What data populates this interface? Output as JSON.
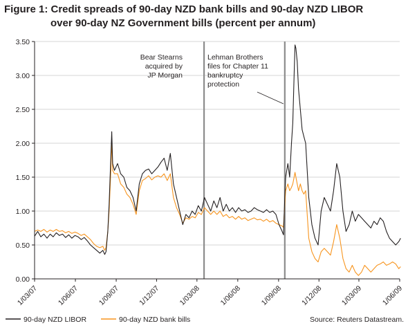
{
  "title": {
    "line1": "Figure 1: Credit spreads of 90-day NZD bank bills and 90-day NZD LIBOR",
    "line2": "over 90-day NZ Government bills (percent per annum)"
  },
  "source": "Source: Reuters Datastream.",
  "colors": {
    "libor": "#231f20",
    "bankbills": "#f7941d",
    "event_line": "#8c8c8c",
    "axis": "#231f20",
    "grid": "#c8c8c8"
  },
  "chart_data": {
    "type": "line",
    "xaxis": {
      "type": "date",
      "ticks": [
        "1/03/07",
        "1/06/07",
        "1/09/07",
        "1/12/07",
        "1/03/08",
        "1/06/08",
        "1/09/08",
        "1/12/08",
        "1/03/09",
        "1/06/09"
      ],
      "xlim": [
        "2007-03-01",
        "2009-06-01"
      ]
    },
    "ylim": [
      0,
      3.5
    ],
    "yticks": [
      "0.00",
      "0.50",
      "1.00",
      "1.50",
      "2.00",
      "2.50",
      "3.00",
      "3.50"
    ],
    "grid": "horizontal",
    "legend_placement": "bottom",
    "annotations": [
      {
        "lines": [
          "Bear Stearns",
          "acquired by",
          "JP Morgan"
        ],
        "date": "2008-03-17"
      },
      {
        "lines": [
          "Lehman Brothers",
          "files for Chapter 11",
          "bankruptcy",
          "protection"
        ],
        "date": "2008-09-15"
      }
    ],
    "series": [
      {
        "name": "90-day NZD LIBOR",
        "color": "#231f20",
        "points": [
          [
            "2007-03-01",
            0.63
          ],
          [
            "2007-03-08",
            0.7
          ],
          [
            "2007-03-15",
            0.62
          ],
          [
            "2007-03-22",
            0.66
          ],
          [
            "2007-03-29",
            0.6
          ],
          [
            "2007-04-05",
            0.66
          ],
          [
            "2007-04-12",
            0.62
          ],
          [
            "2007-04-19",
            0.68
          ],
          [
            "2007-04-26",
            0.64
          ],
          [
            "2007-05-03",
            0.66
          ],
          [
            "2007-05-10",
            0.61
          ],
          [
            "2007-05-17",
            0.65
          ],
          [
            "2007-05-24",
            0.6
          ],
          [
            "2007-05-31",
            0.64
          ],
          [
            "2007-06-07",
            0.62
          ],
          [
            "2007-06-14",
            0.58
          ],
          [
            "2007-06-21",
            0.61
          ],
          [
            "2007-06-28",
            0.56
          ],
          [
            "2007-07-05",
            0.5
          ],
          [
            "2007-07-12",
            0.46
          ],
          [
            "2007-07-19",
            0.42
          ],
          [
            "2007-07-26",
            0.38
          ],
          [
            "2007-08-02",
            0.42
          ],
          [
            "2007-08-06",
            0.36
          ],
          [
            "2007-08-09",
            0.4
          ],
          [
            "2007-08-13",
            0.7
          ],
          [
            "2007-08-16",
            1.1
          ],
          [
            "2007-08-20",
            1.8
          ],
          [
            "2007-08-22",
            2.17
          ],
          [
            "2007-08-24",
            1.7
          ],
          [
            "2007-08-28",
            1.6
          ],
          [
            "2007-09-04",
            1.7
          ],
          [
            "2007-09-11",
            1.55
          ],
          [
            "2007-09-18",
            1.5
          ],
          [
            "2007-09-25",
            1.35
          ],
          [
            "2007-10-02",
            1.3
          ],
          [
            "2007-10-09",
            1.2
          ],
          [
            "2007-10-16",
            1.0
          ],
          [
            "2007-10-23",
            1.4
          ],
          [
            "2007-10-30",
            1.55
          ],
          [
            "2007-11-06",
            1.6
          ],
          [
            "2007-11-13",
            1.62
          ],
          [
            "2007-11-20",
            1.55
          ],
          [
            "2007-11-27",
            1.6
          ],
          [
            "2007-12-04",
            1.65
          ],
          [
            "2007-12-11",
            1.72
          ],
          [
            "2007-12-18",
            1.78
          ],
          [
            "2007-12-25",
            1.6
          ],
          [
            "2008-01-01",
            1.85
          ],
          [
            "2008-01-08",
            1.4
          ],
          [
            "2008-01-15",
            1.2
          ],
          [
            "2008-01-22",
            1.0
          ],
          [
            "2008-01-29",
            0.8
          ],
          [
            "2008-02-05",
            0.95
          ],
          [
            "2008-02-12",
            0.9
          ],
          [
            "2008-02-19",
            1.0
          ],
          [
            "2008-02-26",
            0.95
          ],
          [
            "2008-03-04",
            1.08
          ],
          [
            "2008-03-11",
            1.0
          ],
          [
            "2008-03-18",
            1.2
          ],
          [
            "2008-03-25",
            1.1
          ],
          [
            "2008-04-01",
            1.0
          ],
          [
            "2008-04-08",
            1.15
          ],
          [
            "2008-04-15",
            1.05
          ],
          [
            "2008-04-22",
            1.2
          ],
          [
            "2008-04-29",
            1.0
          ],
          [
            "2008-05-06",
            1.1
          ],
          [
            "2008-05-13",
            1.0
          ],
          [
            "2008-05-20",
            1.05
          ],
          [
            "2008-05-27",
            0.98
          ],
          [
            "2008-06-03",
            1.05
          ],
          [
            "2008-06-10",
            1.0
          ],
          [
            "2008-06-17",
            1.02
          ],
          [
            "2008-06-24",
            0.98
          ],
          [
            "2008-07-01",
            1.0
          ],
          [
            "2008-07-08",
            1.05
          ],
          [
            "2008-07-15",
            1.02
          ],
          [
            "2008-07-22",
            1.0
          ],
          [
            "2008-07-29",
            0.98
          ],
          [
            "2008-08-05",
            1.02
          ],
          [
            "2008-08-12",
            0.98
          ],
          [
            "2008-08-19",
            1.0
          ],
          [
            "2008-08-26",
            0.95
          ],
          [
            "2008-09-02",
            0.8
          ],
          [
            "2008-09-09",
            0.7
          ],
          [
            "2008-09-12",
            0.65
          ],
          [
            "2008-09-15",
            1.2
          ],
          [
            "2008-09-17",
            1.5
          ],
          [
            "2008-09-22",
            1.7
          ],
          [
            "2008-09-26",
            1.5
          ],
          [
            "2008-09-30",
            2.0
          ],
          [
            "2008-10-03",
            2.3
          ],
          [
            "2008-10-06",
            3.0
          ],
          [
            "2008-10-08",
            3.45
          ],
          [
            "2008-10-10",
            3.4
          ],
          [
            "2008-10-13",
            3.2
          ],
          [
            "2008-10-16",
            2.8
          ],
          [
            "2008-10-20",
            2.5
          ],
          [
            "2008-10-24",
            2.2
          ],
          [
            "2008-10-28",
            2.1
          ],
          [
            "2008-11-01",
            2.0
          ],
          [
            "2008-11-08",
            1.2
          ],
          [
            "2008-11-15",
            0.8
          ],
          [
            "2008-11-22",
            0.6
          ],
          [
            "2008-11-29",
            0.5
          ],
          [
            "2008-12-06",
            1.0
          ],
          [
            "2008-12-13",
            1.2
          ],
          [
            "2008-12-20",
            1.1
          ],
          [
            "2008-12-27",
            1.0
          ],
          [
            "2009-01-03",
            1.3
          ],
          [
            "2009-01-10",
            1.7
          ],
          [
            "2009-01-17",
            1.5
          ],
          [
            "2009-01-24",
            1.0
          ],
          [
            "2009-01-31",
            0.7
          ],
          [
            "2009-02-07",
            0.8
          ],
          [
            "2009-02-14",
            1.0
          ],
          [
            "2009-02-21",
            0.85
          ],
          [
            "2009-02-28",
            0.95
          ],
          [
            "2009-03-07",
            0.9
          ],
          [
            "2009-03-14",
            0.85
          ],
          [
            "2009-03-21",
            0.8
          ],
          [
            "2009-03-28",
            0.75
          ],
          [
            "2009-04-04",
            0.85
          ],
          [
            "2009-04-11",
            0.8
          ],
          [
            "2009-04-18",
            0.9
          ],
          [
            "2009-04-25",
            0.85
          ],
          [
            "2009-05-02",
            0.7
          ],
          [
            "2009-05-09",
            0.6
          ],
          [
            "2009-05-16",
            0.55
          ],
          [
            "2009-05-23",
            0.5
          ],
          [
            "2009-05-30",
            0.55
          ],
          [
            "2009-06-03",
            0.6
          ]
        ]
      },
      {
        "name": "90-day NZD bank bills",
        "color": "#f7941d",
        "points": [
          [
            "2007-03-01",
            0.7
          ],
          [
            "2007-03-08",
            0.72
          ],
          [
            "2007-03-15",
            0.7
          ],
          [
            "2007-03-22",
            0.73
          ],
          [
            "2007-03-29",
            0.69
          ],
          [
            "2007-04-05",
            0.72
          ],
          [
            "2007-04-12",
            0.7
          ],
          [
            "2007-04-19",
            0.73
          ],
          [
            "2007-04-26",
            0.7
          ],
          [
            "2007-05-03",
            0.71
          ],
          [
            "2007-05-10",
            0.68
          ],
          [
            "2007-05-17",
            0.7
          ],
          [
            "2007-05-24",
            0.67
          ],
          [
            "2007-05-31",
            0.69
          ],
          [
            "2007-06-07",
            0.67
          ],
          [
            "2007-06-14",
            0.64
          ],
          [
            "2007-06-21",
            0.66
          ],
          [
            "2007-06-28",
            0.62
          ],
          [
            "2007-07-05",
            0.58
          ],
          [
            "2007-07-12",
            0.52
          ],
          [
            "2007-07-19",
            0.48
          ],
          [
            "2007-07-26",
            0.46
          ],
          [
            "2007-08-02",
            0.48
          ],
          [
            "2007-08-06",
            0.42
          ],
          [
            "2007-08-09",
            0.46
          ],
          [
            "2007-08-13",
            0.7
          ],
          [
            "2007-08-16",
            1.0
          ],
          [
            "2007-08-20",
            1.6
          ],
          [
            "2007-08-22",
            2.05
          ],
          [
            "2007-08-24",
            1.6
          ],
          [
            "2007-08-28",
            1.55
          ],
          [
            "2007-09-04",
            1.55
          ],
          [
            "2007-09-11",
            1.4
          ],
          [
            "2007-09-18",
            1.35
          ],
          [
            "2007-09-25",
            1.25
          ],
          [
            "2007-10-02",
            1.2
          ],
          [
            "2007-10-09",
            1.1
          ],
          [
            "2007-10-16",
            0.95
          ],
          [
            "2007-10-23",
            1.3
          ],
          [
            "2007-10-30",
            1.45
          ],
          [
            "2007-11-06",
            1.48
          ],
          [
            "2007-11-13",
            1.52
          ],
          [
            "2007-11-20",
            1.46
          ],
          [
            "2007-11-27",
            1.5
          ],
          [
            "2007-12-04",
            1.52
          ],
          [
            "2007-12-11",
            1.5
          ],
          [
            "2007-12-18",
            1.55
          ],
          [
            "2007-12-25",
            1.45
          ],
          [
            "2008-01-01",
            1.55
          ],
          [
            "2008-01-08",
            1.2
          ],
          [
            "2008-01-15",
            1.05
          ],
          [
            "2008-01-22",
            0.95
          ],
          [
            "2008-01-29",
            0.82
          ],
          [
            "2008-02-05",
            0.9
          ],
          [
            "2008-02-12",
            0.88
          ],
          [
            "2008-02-19",
            0.92
          ],
          [
            "2008-02-26",
            0.9
          ],
          [
            "2008-03-04",
            0.98
          ],
          [
            "2008-03-11",
            0.95
          ],
          [
            "2008-03-18",
            1.05
          ],
          [
            "2008-03-25",
            1.0
          ],
          [
            "2008-04-01",
            0.95
          ],
          [
            "2008-04-08",
            1.0
          ],
          [
            "2008-04-15",
            0.95
          ],
          [
            "2008-04-22",
            1.0
          ],
          [
            "2008-04-29",
            0.92
          ],
          [
            "2008-05-06",
            0.95
          ],
          [
            "2008-05-13",
            0.9
          ],
          [
            "2008-05-20",
            0.92
          ],
          [
            "2008-05-27",
            0.88
          ],
          [
            "2008-06-03",
            0.92
          ],
          [
            "2008-06-10",
            0.88
          ],
          [
            "2008-06-17",
            0.9
          ],
          [
            "2008-06-24",
            0.86
          ],
          [
            "2008-07-01",
            0.88
          ],
          [
            "2008-07-08",
            0.9
          ],
          [
            "2008-07-15",
            0.87
          ],
          [
            "2008-07-22",
            0.88
          ],
          [
            "2008-07-29",
            0.85
          ],
          [
            "2008-08-05",
            0.88
          ],
          [
            "2008-08-12",
            0.84
          ],
          [
            "2008-08-19",
            0.86
          ],
          [
            "2008-08-26",
            0.82
          ],
          [
            "2008-09-02",
            0.8
          ],
          [
            "2008-09-09",
            0.78
          ],
          [
            "2008-09-12",
            0.76
          ],
          [
            "2008-09-15",
            1.1
          ],
          [
            "2008-09-17",
            1.3
          ],
          [
            "2008-09-22",
            1.4
          ],
          [
            "2008-09-26",
            1.3
          ],
          [
            "2008-09-30",
            1.35
          ],
          [
            "2008-10-03",
            1.4
          ],
          [
            "2008-10-06",
            1.5
          ],
          [
            "2008-10-08",
            1.57
          ],
          [
            "2008-10-10",
            1.5
          ],
          [
            "2008-10-13",
            1.4
          ],
          [
            "2008-10-16",
            1.3
          ],
          [
            "2008-10-20",
            1.4
          ],
          [
            "2008-10-24",
            1.3
          ],
          [
            "2008-10-28",
            1.25
          ],
          [
            "2008-11-01",
            1.3
          ],
          [
            "2008-11-08",
            0.6
          ],
          [
            "2008-11-15",
            0.4
          ],
          [
            "2008-11-22",
            0.3
          ],
          [
            "2008-11-29",
            0.25
          ],
          [
            "2008-12-06",
            0.4
          ],
          [
            "2008-12-13",
            0.45
          ],
          [
            "2008-12-20",
            0.4
          ],
          [
            "2008-12-27",
            0.35
          ],
          [
            "2009-01-03",
            0.55
          ],
          [
            "2009-01-10",
            0.8
          ],
          [
            "2009-01-17",
            0.6
          ],
          [
            "2009-01-24",
            0.3
          ],
          [
            "2009-01-31",
            0.15
          ],
          [
            "2009-02-07",
            0.1
          ],
          [
            "2009-02-14",
            0.2
          ],
          [
            "2009-02-21",
            0.1
          ],
          [
            "2009-02-28",
            0.05
          ],
          [
            "2009-03-07",
            0.1
          ],
          [
            "2009-03-14",
            0.2
          ],
          [
            "2009-03-21",
            0.15
          ],
          [
            "2009-03-28",
            0.1
          ],
          [
            "2009-04-04",
            0.15
          ],
          [
            "2009-04-11",
            0.2
          ],
          [
            "2009-04-18",
            0.22
          ],
          [
            "2009-04-25",
            0.25
          ],
          [
            "2009-05-02",
            0.2
          ],
          [
            "2009-05-09",
            0.22
          ],
          [
            "2009-05-16",
            0.25
          ],
          [
            "2009-05-23",
            0.22
          ],
          [
            "2009-05-30",
            0.15
          ],
          [
            "2009-06-03",
            0.18
          ]
        ]
      }
    ]
  }
}
